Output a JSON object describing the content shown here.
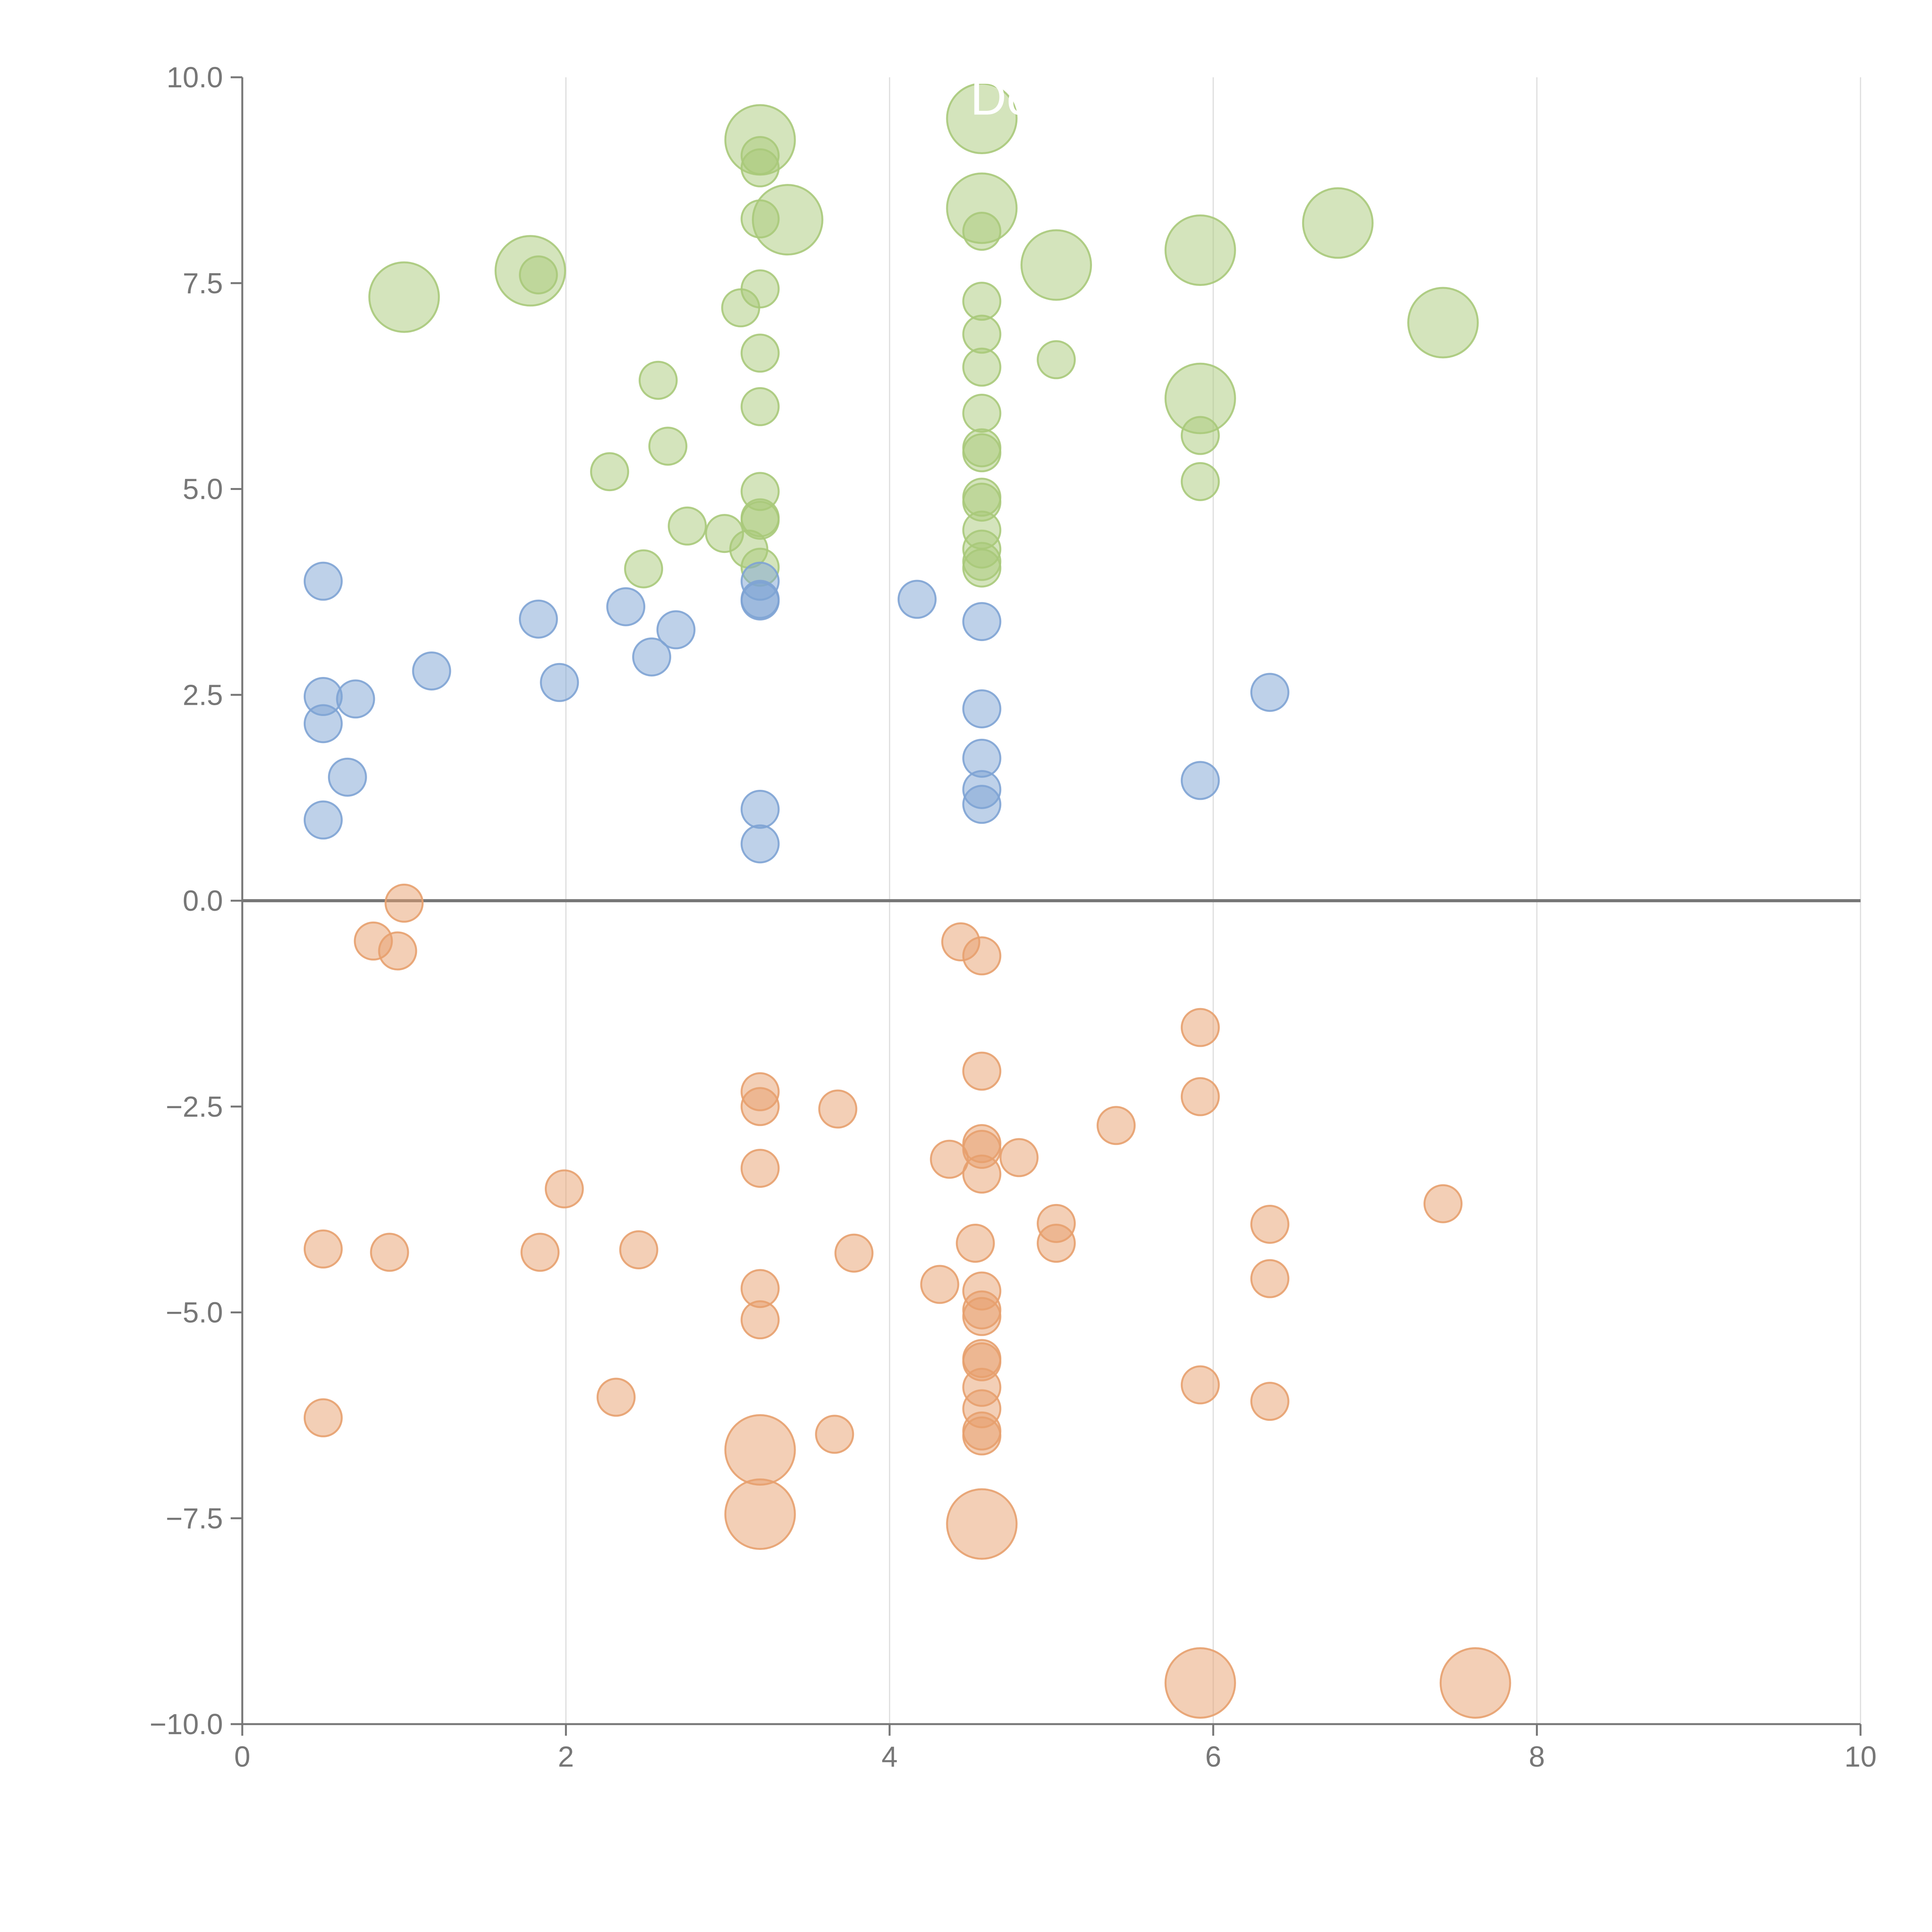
{
  "chart_data": {
    "type": "scatter",
    "subtype": "bubble",
    "title": "",
    "xlabel": "",
    "ylabel": "",
    "xlim": [
      0,
      10
    ],
    "ylim": [
      -10,
      10
    ],
    "x_ticks": [
      "0",
      "2",
      "4",
      "6",
      "8",
      "10"
    ],
    "y_ticks": [
      "10.0",
      "7.5",
      "5.0",
      "2.5",
      "0.0",
      "−2.5",
      "−5.0",
      "−7.5",
      "−10.0"
    ],
    "grid": "vertical",
    "legend": "none",
    "colors": {
      "green": "#a9c97a",
      "blue": "#7ea3d4",
      "orange": "#e7a06e",
      "zero_line": "#777777",
      "grid": "#dddddd",
      "axis": "#777777"
    },
    "series": [
      {
        "name": "green",
        "color": "#a9c97a",
        "points": [
          [
            1.0,
            7.33,
            2
          ],
          [
            1.78,
            7.65,
            2
          ],
          [
            1.83,
            7.6,
            1
          ],
          [
            2.27,
            5.21,
            1
          ],
          [
            2.48,
            4.03,
            1
          ],
          [
            2.57,
            6.32,
            1
          ],
          [
            2.63,
            5.52,
            1
          ],
          [
            2.75,
            4.55,
            1
          ],
          [
            2.98,
            4.46,
            1
          ],
          [
            3.08,
            7.2,
            1
          ],
          [
            3.13,
            4.27,
            1
          ],
          [
            3.2,
            9.24,
            2
          ],
          [
            3.2,
            9.05,
            1
          ],
          [
            3.2,
            8.9,
            1
          ],
          [
            3.2,
            8.28,
            1
          ],
          [
            3.2,
            7.43,
            1
          ],
          [
            3.2,
            6.65,
            1
          ],
          [
            3.2,
            6.0,
            1
          ],
          [
            3.2,
            4.97,
            1
          ],
          [
            3.2,
            4.65,
            1
          ],
          [
            3.2,
            4.62,
            1
          ],
          [
            3.2,
            4.05,
            1
          ],
          [
            3.37,
            8.27,
            2
          ],
          [
            4.57,
            9.5,
            2
          ],
          [
            4.57,
            8.41,
            2
          ],
          [
            4.57,
            8.13,
            1
          ],
          [
            4.57,
            7.28,
            1
          ],
          [
            4.57,
            6.88,
            1
          ],
          [
            4.57,
            6.48,
            1
          ],
          [
            4.57,
            5.92,
            1
          ],
          [
            4.57,
            5.5,
            1
          ],
          [
            4.57,
            5.44,
            1
          ],
          [
            4.57,
            4.9,
            1
          ],
          [
            4.57,
            4.84,
            1
          ],
          [
            4.57,
            4.5,
            1
          ],
          [
            4.57,
            4.27,
            1
          ],
          [
            4.57,
            4.12,
            1
          ],
          [
            4.57,
            4.04,
            1
          ],
          [
            5.03,
            7.72,
            2
          ],
          [
            5.03,
            6.57,
            1
          ],
          [
            5.92,
            7.9,
            2
          ],
          [
            5.92,
            6.1,
            2
          ],
          [
            5.92,
            5.65,
            1
          ],
          [
            5.92,
            5.09,
            1
          ],
          [
            6.77,
            8.23,
            2
          ],
          [
            7.42,
            7.02,
            2
          ]
        ]
      },
      {
        "name": "blue",
        "color": "#7ea3d4",
        "points": [
          [
            0.5,
            3.88,
            1
          ],
          [
            0.5,
            2.48,
            1
          ],
          [
            0.5,
            2.15,
            1
          ],
          [
            0.5,
            0.98,
            1
          ],
          [
            0.65,
            1.5,
            1
          ],
          [
            0.7,
            2.45,
            1
          ],
          [
            1.17,
            2.79,
            1
          ],
          [
            1.83,
            3.42,
            1
          ],
          [
            1.96,
            2.65,
            1
          ],
          [
            2.37,
            3.57,
            1
          ],
          [
            2.53,
            2.96,
            1
          ],
          [
            2.68,
            3.29,
            1
          ],
          [
            3.2,
            3.88,
            1
          ],
          [
            3.2,
            3.66,
            1
          ],
          [
            3.2,
            3.64,
            1
          ],
          [
            3.2,
            1.11,
            1
          ],
          [
            3.2,
            0.69,
            1
          ],
          [
            4.17,
            3.66,
            1
          ],
          [
            4.57,
            3.39,
            1
          ],
          [
            4.57,
            2.33,
            1
          ],
          [
            4.57,
            1.73,
            1
          ],
          [
            4.57,
            1.35,
            1
          ],
          [
            4.57,
            1.17,
            1
          ],
          [
            5.92,
            1.46,
            1
          ],
          [
            6.35,
            2.53,
            1
          ]
        ]
      },
      {
        "name": "orange",
        "color": "#e7a06e",
        "points": [
          [
            1.0,
            -0.03,
            1
          ],
          [
            0.81,
            -0.49,
            1
          ],
          [
            0.96,
            -0.61,
            1
          ],
          [
            0.5,
            -4.23,
            1
          ],
          [
            0.91,
            -4.27,
            1
          ],
          [
            1.84,
            -4.27,
            1
          ],
          [
            1.99,
            -3.5,
            1
          ],
          [
            2.45,
            -4.24,
            1
          ],
          [
            0.5,
            -6.28,
            1
          ],
          [
            2.31,
            -6.03,
            1
          ],
          [
            3.2,
            -2.32,
            1
          ],
          [
            3.2,
            -2.5,
            1
          ],
          [
            3.2,
            -3.25,
            1
          ],
          [
            3.2,
            -4.71,
            1
          ],
          [
            3.2,
            -5.09,
            1
          ],
          [
            3.2,
            -6.67,
            2
          ],
          [
            3.2,
            -7.45,
            2
          ],
          [
            3.68,
            -2.53,
            1
          ],
          [
            3.78,
            -4.28,
            1
          ],
          [
            3.66,
            -6.48,
            1
          ],
          [
            4.44,
            -0.5,
            1
          ],
          [
            4.57,
            -0.67,
            1
          ],
          [
            4.57,
            -2.07,
            1
          ],
          [
            4.57,
            -2.95,
            1
          ],
          [
            4.57,
            -3.02,
            1
          ],
          [
            4.57,
            -3.32,
            1
          ],
          [
            4.37,
            -3.14,
            1
          ],
          [
            4.8,
            -3.12,
            1
          ],
          [
            4.53,
            -4.16,
            1
          ],
          [
            4.31,
            -4.66,
            1
          ],
          [
            4.57,
            -4.74,
            1
          ],
          [
            4.57,
            -4.97,
            1
          ],
          [
            4.57,
            -5.05,
            1
          ],
          [
            4.57,
            -5.56,
            1
          ],
          [
            4.57,
            -5.6,
            1
          ],
          [
            4.57,
            -5.91,
            1
          ],
          [
            4.57,
            -6.17,
            1
          ],
          [
            4.57,
            -6.44,
            1
          ],
          [
            4.57,
            -6.5,
            1
          ],
          [
            4.57,
            -7.57,
            2
          ],
          [
            5.03,
            -3.92,
            1
          ],
          [
            5.03,
            -4.16,
            1
          ],
          [
            5.4,
            -2.73,
            1
          ],
          [
            5.92,
            -1.54,
            1
          ],
          [
            5.92,
            -2.38,
            1
          ],
          [
            5.92,
            -5.88,
            1
          ],
          [
            5.92,
            -9.5,
            2
          ],
          [
            6.35,
            -3.93,
            1
          ],
          [
            6.35,
            -4.59,
            1
          ],
          [
            6.35,
            -6.08,
            1
          ],
          [
            7.42,
            -3.68,
            1
          ],
          [
            7.62,
            -9.5,
            2
          ]
        ]
      }
    ],
    "annotations": [
      {
        "text": "Do",
        "x": 4.57,
        "y": 9.5
      }
    ]
  }
}
